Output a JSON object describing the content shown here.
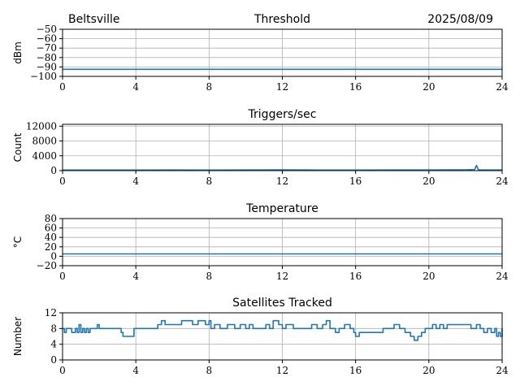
{
  "header": {
    "station": "Beltsville",
    "date": "2025/08/09"
  },
  "colors": {
    "series": "#1f77b4",
    "grid": "#b0b0b0"
  },
  "chart_data": [
    {
      "type": "line",
      "title": "Threshold",
      "xlabel": "",
      "ylabel": "dBm",
      "xlim": [
        0,
        24
      ],
      "ylim": [
        -100,
        -50
      ],
      "xticks": [
        0,
        4,
        8,
        12,
        16,
        20,
        24
      ],
      "yticks": [
        -100,
        -90,
        -80,
        -70,
        -60,
        -50
      ],
      "ytick_labels": [
        "−100",
        "−90",
        "−80",
        "−70",
        "−60",
        "−50"
      ],
      "grid": true,
      "series": [
        {
          "x": [
            0,
            24
          ],
          "y": [
            -92.5,
            -92.5
          ]
        }
      ]
    },
    {
      "type": "line",
      "title": "Triggers/sec",
      "xlabel": "",
      "ylabel": "Count",
      "xlim": [
        0,
        24
      ],
      "ylim": [
        0,
        12500
      ],
      "xticks": [
        0,
        4,
        8,
        12,
        16,
        20,
        24
      ],
      "yticks": [
        0,
        4000,
        8000,
        12000
      ],
      "ytick_labels": [
        "0",
        "4000",
        "8000",
        "12000"
      ],
      "grid": true,
      "series": [
        {
          "x": [
            0,
            2,
            4,
            6,
            8,
            10,
            12,
            14,
            16,
            18,
            20,
            21,
            22,
            22.5,
            22.6,
            22.7,
            22.8,
            23,
            24
          ],
          "y": [
            150,
            160,
            140,
            170,
            150,
            180,
            200,
            160,
            150,
            170,
            180,
            200,
            220,
            300,
            1400,
            250,
            200,
            180,
            170
          ]
        }
      ]
    },
    {
      "type": "line",
      "title": "Temperature",
      "xlabel": "",
      "ylabel": "°C",
      "xlim": [
        0,
        24
      ],
      "ylim": [
        -20,
        80
      ],
      "xticks": [
        0,
        4,
        8,
        12,
        16,
        20,
        24
      ],
      "yticks": [
        -20,
        0,
        20,
        40,
        60,
        80
      ],
      "ytick_labels": [
        "−20",
        "0",
        "20",
        "40",
        "60",
        "80"
      ],
      "grid": true,
      "series": [
        {
          "x": [
            0,
            24
          ],
          "y": [
            5,
            5
          ]
        }
      ]
    },
    {
      "type": "line",
      "title": "Satellites Tracked",
      "xlabel": "",
      "ylabel": "Number",
      "xlim": [
        0,
        24
      ],
      "ylim": [
        0,
        12
      ],
      "xticks": [
        0,
        4,
        8,
        12,
        16,
        20,
        24
      ],
      "yticks": [
        0,
        4,
        8,
        12
      ],
      "ytick_labels": [
        "0",
        "4",
        "8",
        "12"
      ],
      "grid": true,
      "step": true,
      "series": [
        {
          "x": [
            0,
            0.1,
            0.2,
            0.4,
            0.5,
            0.7,
            0.8,
            0.9,
            1.0,
            1.1,
            1.2,
            1.3,
            1.4,
            1.5,
            1.6,
            1.8,
            1.9,
            2.0,
            2.1,
            2.2,
            3.0,
            3.2,
            3.3,
            3.4,
            3.6,
            3.9,
            4.0,
            5.2,
            5.4,
            5.6,
            5.8,
            6.0,
            6.2,
            6.5,
            6.8,
            7.1,
            7.4,
            7.8,
            8.0,
            8.1,
            8.3,
            8.6,
            9.0,
            9.4,
            9.7,
            10.0,
            10.2,
            10.4,
            10.7,
            10.9,
            11.1,
            11.3,
            11.5,
            11.8,
            12.0,
            12.2,
            12.6,
            13.0,
            13.3,
            13.6,
            13.9,
            14.2,
            14.4,
            14.6,
            14.9,
            15.1,
            15.4,
            15.7,
            15.9,
            16.0,
            16.2,
            16.5,
            17.0,
            17.5,
            17.8,
            18.1,
            18.4,
            18.7,
            19.0,
            19.2,
            19.4,
            19.6,
            19.8,
            20.2,
            20.4,
            20.6,
            20.8,
            21.0,
            21.3,
            21.6,
            22.0,
            22.3,
            22.6,
            22.8,
            23.0,
            23.2,
            23.4,
            23.6,
            23.7,
            23.8,
            23.9,
            24.0
          ],
          "y": [
            8,
            7,
            8,
            8,
            7,
            8,
            7,
            9,
            7,
            8,
            7,
            8,
            7,
            8,
            8,
            8,
            9,
            8,
            8,
            8,
            8,
            7,
            6,
            6,
            6,
            8,
            8,
            9,
            10,
            9,
            9,
            9,
            9,
            10,
            10,
            9,
            10,
            9,
            10,
            8,
            9,
            8,
            9,
            8,
            9,
            8,
            9,
            8,
            8,
            8,
            9,
            8,
            10,
            9,
            8,
            9,
            8,
            8,
            8,
            9,
            8,
            9,
            10,
            8,
            7,
            8,
            9,
            8,
            7,
            6,
            7,
            7,
            7,
            8,
            8,
            9,
            8,
            7,
            6,
            5,
            6,
            7,
            8,
            9,
            8,
            9,
            8,
            9,
            9,
            9,
            9,
            8,
            9,
            8,
            7,
            8,
            7,
            8,
            6,
            7,
            6,
            8
          ]
        }
      ]
    }
  ]
}
